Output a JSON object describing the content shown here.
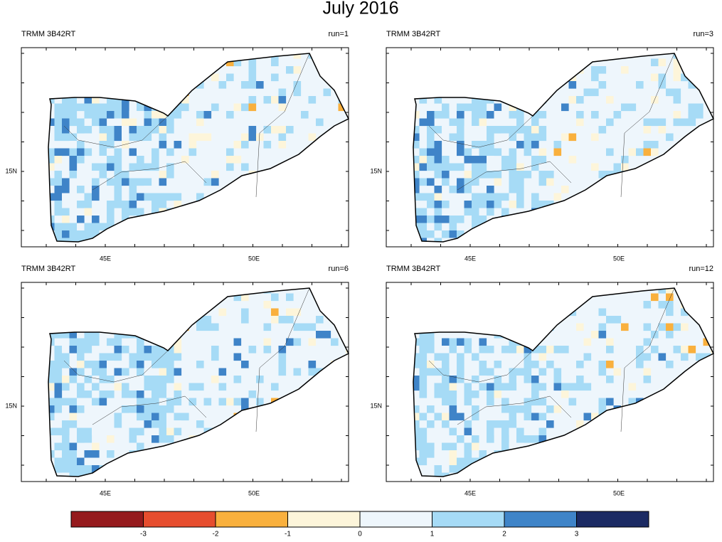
{
  "title": "July 2016",
  "panels": [
    {
      "source": "TRMM 3B42RT",
      "run": "run=1",
      "x_labels": [
        "45E",
        "50E"
      ],
      "y_labels": [
        "15N"
      ]
    },
    {
      "source": "TRMM 3B42RT",
      "run": "run=3",
      "x_labels": [
        "45E",
        "50E"
      ],
      "y_labels": [
        "15N"
      ]
    },
    {
      "source": "TRMM 3B42RT",
      "run": "run=6",
      "x_labels": [
        "45E",
        "50E"
      ],
      "y_labels": [
        "15N"
      ]
    },
    {
      "source": "TRMM 3B42RT",
      "run": "run=12",
      "x_labels": [
        "45E",
        "50E"
      ],
      "y_labels": [
        "15N"
      ]
    }
  ],
  "colorbar": {
    "colors": [
      "#951a1d",
      "#e64d2e",
      "#f9b03d",
      "#fdf5da",
      "#eef6fc",
      "#a6dbf6",
      "#3f84c8",
      "#1b2a63"
    ],
    "ticks": [
      -3,
      -2,
      -1,
      0,
      1,
      2,
      3
    ]
  }
}
